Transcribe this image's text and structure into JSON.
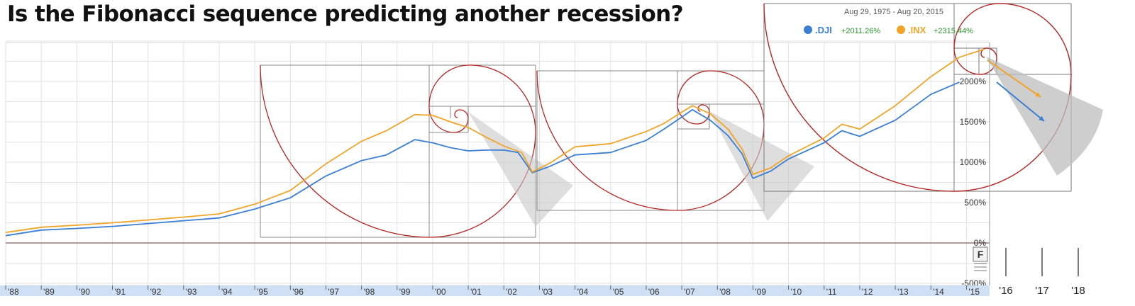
{
  "headline": "Is the Fibonacci sequence predicting another recession?",
  "chart_data": {
    "type": "line",
    "title": "Is the Fibonacci sequence predicting another recession?",
    "legend": {
      "date_range": "Aug 29, 1975  -  Aug 20, 2015",
      "placement": "top-right",
      "entries": [
        {
          "name": ".DJI",
          "change": "+2011.26%",
          "color": "#3b7fd4"
        },
        {
          "name": ".INX",
          "change": "+2315.44%",
          "color": "#f0a52a"
        }
      ]
    },
    "x_tick_labels": [
      "'88",
      "'89",
      "'90",
      "'91",
      "'92",
      "'93",
      "'94",
      "'95",
      "'96",
      "'97",
      "'98",
      "'99",
      "'00",
      "'01",
      "'02",
      "'03",
      "'04",
      "'05",
      "'06",
      "'07",
      "'08",
      "'09",
      "'10",
      "'11",
      "'12",
      "'13",
      "'14",
      "'15"
    ],
    "extended_years": [
      "'16",
      "'17",
      "'18"
    ],
    "y_tick_labels": [
      "2000%",
      "1500%",
      "1000%",
      "500%",
      "0%",
      "-500%"
    ],
    "y_ticks": [
      2000,
      1500,
      1000,
      500,
      0,
      -500
    ],
    "ylim": [
      -500,
      2500
    ],
    "xlim": [
      1988.0,
      2015.65
    ],
    "grid": true,
    "fib_tag": "F",
    "colors": {
      "dji": "#3b7fd4",
      "inx": "#f0a52a",
      "spiral": "#b82424",
      "cone": "#c8c8c8",
      "grid": "#e2e2e2",
      "axis_band": "#cfe0f5"
    },
    "series": [
      {
        "name": ".DJI",
        "points": [
          [
            1988.0,
            90
          ],
          [
            1989.0,
            160
          ],
          [
            1990.0,
            180
          ],
          [
            1991.0,
            205
          ],
          [
            1992.0,
            240
          ],
          [
            1993.0,
            275
          ],
          [
            1994.0,
            310
          ],
          [
            1995.0,
            420
          ],
          [
            1996.0,
            560
          ],
          [
            1997.0,
            830
          ],
          [
            1998.0,
            1020
          ],
          [
            1998.7,
            1090
          ],
          [
            1999.5,
            1280
          ],
          [
            2000.0,
            1240
          ],
          [
            2000.5,
            1180
          ],
          [
            2001.0,
            1140
          ],
          [
            2001.5,
            1150
          ],
          [
            2002.0,
            1150
          ],
          [
            2002.4,
            1120
          ],
          [
            2002.8,
            870
          ],
          [
            2003.3,
            950
          ],
          [
            2004.0,
            1090
          ],
          [
            2005.0,
            1120
          ],
          [
            2006.0,
            1270
          ],
          [
            2006.5,
            1410
          ],
          [
            2007.0,
            1560
          ],
          [
            2007.3,
            1650
          ],
          [
            2007.8,
            1520
          ],
          [
            2008.3,
            1330
          ],
          [
            2008.7,
            1100
          ],
          [
            2009.0,
            800
          ],
          [
            2009.5,
            890
          ],
          [
            2010.0,
            1040
          ],
          [
            2011.0,
            1240
          ],
          [
            2011.5,
            1390
          ],
          [
            2012.0,
            1320
          ],
          [
            2013.0,
            1520
          ],
          [
            2014.0,
            1840
          ],
          [
            2014.8,
            1990
          ]
        ]
      },
      {
        "name": ".INX",
        "points": [
          [
            1988.0,
            130
          ],
          [
            1989.0,
            195
          ],
          [
            1990.0,
            220
          ],
          [
            1991.0,
            250
          ],
          [
            1992.0,
            285
          ],
          [
            1993.0,
            320
          ],
          [
            1994.0,
            360
          ],
          [
            1995.0,
            480
          ],
          [
            1996.0,
            650
          ],
          [
            1997.0,
            980
          ],
          [
            1998.0,
            1260
          ],
          [
            1998.7,
            1390
          ],
          [
            1999.5,
            1590
          ],
          [
            2000.0,
            1580
          ],
          [
            2000.5,
            1500
          ],
          [
            2001.0,
            1430
          ],
          [
            2001.5,
            1310
          ],
          [
            2002.0,
            1200
          ],
          [
            2002.5,
            1120
          ],
          [
            2002.8,
            880
          ],
          [
            2003.3,
            990
          ],
          [
            2004.0,
            1190
          ],
          [
            2005.0,
            1230
          ],
          [
            2006.0,
            1380
          ],
          [
            2006.5,
            1480
          ],
          [
            2007.0,
            1620
          ],
          [
            2007.3,
            1700
          ],
          [
            2007.8,
            1600
          ],
          [
            2008.3,
            1410
          ],
          [
            2008.7,
            1160
          ],
          [
            2009.0,
            850
          ],
          [
            2009.5,
            930
          ],
          [
            2010.0,
            1080
          ],
          [
            2011.0,
            1300
          ],
          [
            2011.5,
            1470
          ],
          [
            2012.0,
            1410
          ],
          [
            2013.0,
            1700
          ],
          [
            2014.0,
            2060
          ],
          [
            2014.8,
            2300
          ],
          [
            2015.5,
            2400
          ]
        ]
      }
    ]
  }
}
